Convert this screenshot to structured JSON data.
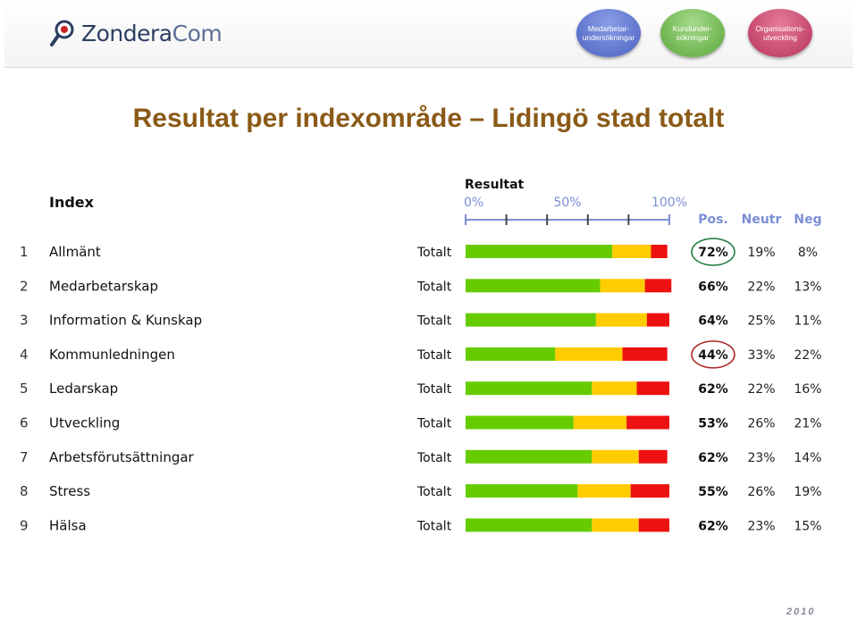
{
  "header": {
    "logo_text_main": "Zondera",
    "logo_text_suffix": "Com",
    "nav": [
      {
        "line1": "Medarbetar-",
        "line2": "undersökningar"
      },
      {
        "line1": "Kundunder-",
        "line2": "sökningar"
      },
      {
        "line1": "Organisations-",
        "line2": "utveckling"
      }
    ]
  },
  "colors": {
    "pos": "#66cc00",
    "neutr": "#ffcc00",
    "neg": "#ee1111",
    "title": "#8a5a16",
    "axis": "#7b8fd6",
    "circle": "#1a7a3a",
    "circle_neg": "#aa2222"
  },
  "chart_data": {
    "type": "bar",
    "subtype": "stacked-horizontal",
    "title": "Resultat per indexområde – Lidingö stad totalt",
    "index_header": "Index",
    "result_header": "Resultat",
    "axis_ticks": [
      "0%",
      "50%",
      "100%"
    ],
    "xlim": [
      0,
      100
    ],
    "column_headers": [
      "Pos.",
      "Neutr",
      "Neg"
    ],
    "series_names": [
      "Pos.",
      "Neutr",
      "Neg"
    ],
    "rows": [
      {
        "num": "1",
        "name": "Allmänt",
        "group": "Totalt",
        "pos": 72,
        "neutr": 19,
        "neg": 8,
        "pos_label": "72%",
        "neutr_label": "19%",
        "neg_label": "8%",
        "highlight": "green"
      },
      {
        "num": "2",
        "name": "Medarbetarskap",
        "group": "Totalt",
        "pos": 66,
        "neutr": 22,
        "neg": 13,
        "pos_label": "66%",
        "neutr_label": "22%",
        "neg_label": "13%"
      },
      {
        "num": "3",
        "name": "Information & Kunskap",
        "group": "Totalt",
        "pos": 64,
        "neutr": 25,
        "neg": 11,
        "pos_label": "64%",
        "neutr_label": "25%",
        "neg_label": "11%"
      },
      {
        "num": "4",
        "name": "Kommunledningen",
        "group": "Totalt",
        "pos": 44,
        "neutr": 33,
        "neg": 22,
        "pos_label": "44%",
        "neutr_label": "33%",
        "neg_label": "22%",
        "highlight": "red"
      },
      {
        "num": "5",
        "name": "Ledarskap",
        "group": "Totalt",
        "pos": 62,
        "neutr": 22,
        "neg": 16,
        "pos_label": "62%",
        "neutr_label": "22%",
        "neg_label": "16%"
      },
      {
        "num": "6",
        "name": "Utveckling",
        "group": "Totalt",
        "pos": 53,
        "neutr": 26,
        "neg": 21,
        "pos_label": "53%",
        "neutr_label": "26%",
        "neg_label": "21%"
      },
      {
        "num": "7",
        "name": "Arbetsförutsättningar",
        "group": "Totalt",
        "pos": 62,
        "neutr": 23,
        "neg": 14,
        "pos_label": "62%",
        "neutr_label": "23%",
        "neg_label": "14%"
      },
      {
        "num": "8",
        "name": "Stress",
        "group": "Totalt",
        "pos": 55,
        "neutr": 26,
        "neg": 19,
        "pos_label": "55%",
        "neutr_label": "26%",
        "neg_label": "19%"
      },
      {
        "num": "9",
        "name": "Hälsa",
        "group": "Totalt",
        "pos": 62,
        "neutr": 23,
        "neg": 15,
        "pos_label": "62%",
        "neutr_label": "23%",
        "neg_label": "15%"
      }
    ]
  },
  "footer": {
    "year": "2010"
  }
}
